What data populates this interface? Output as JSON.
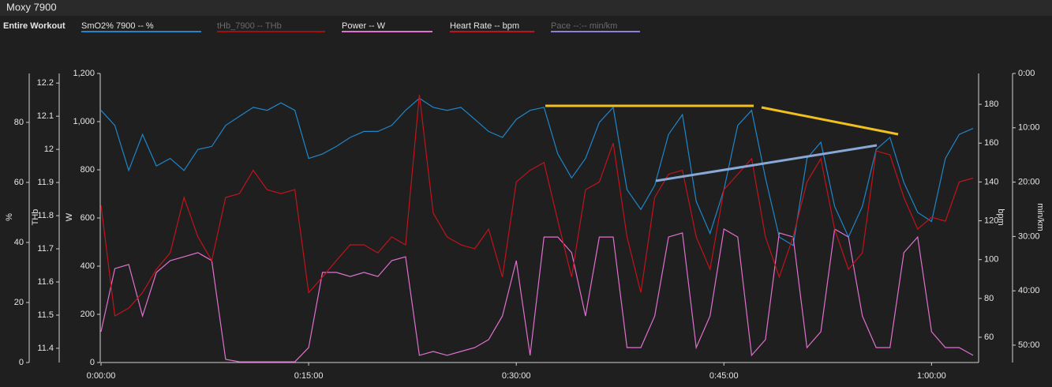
{
  "chart_data": {
    "type": "line",
    "title": "Moxy 7900",
    "subtitle": "Entire Workout",
    "x": [
      0,
      1,
      2,
      3,
      4,
      5,
      6,
      7,
      8,
      9,
      10,
      11,
      12,
      13,
      14,
      15,
      16,
      17,
      18,
      19,
      20,
      21,
      22,
      23,
      24,
      25,
      26,
      27,
      28,
      29,
      30,
      31,
      32,
      33,
      34,
      35,
      36,
      37,
      38,
      39,
      40,
      41,
      42,
      43,
      44,
      45,
      46,
      47,
      48,
      49,
      50,
      51,
      52,
      53,
      54,
      55,
      56,
      57,
      58,
      59,
      60,
      61,
      62,
      63
    ],
    "xlim": [
      0,
      63.4
    ],
    "xticks": [
      {
        "value": 0,
        "label": "0:00:00"
      },
      {
        "value": 15,
        "label": "0:15:00"
      },
      {
        "value": 30,
        "label": "0:30:00"
      },
      {
        "value": 45,
        "label": "0:45:00"
      },
      {
        "value": 60,
        "label": "1:00:00"
      }
    ],
    "axes": [
      {
        "title": "%",
        "lim": [
          0,
          96.3
        ],
        "ticks": [
          0,
          20,
          40,
          60,
          80
        ]
      },
      {
        "title": "THb",
        "lim": [
          11.357,
          12.229
        ],
        "ticks": [
          11.4,
          11.5,
          11.6,
          11.7,
          11.8,
          11.9,
          12,
          12.1,
          12.2
        ]
      },
      {
        "title": "W",
        "lim": [
          0,
          1200
        ],
        "ticks": [
          0,
          200,
          400,
          600,
          800,
          {
            "value": 1000,
            "label": "1,000"
          },
          {
            "value": 1200,
            "label": "1,200"
          }
        ]
      },
      {
        "title": "bpm",
        "lim": [
          46.98,
          195.9
        ],
        "ticks": [
          60,
          80,
          100,
          120,
          140,
          160,
          180
        ]
      },
      {
        "title": "min/km",
        "lim": [
          53.2,
          0
        ],
        "ticks": [
          {
            "value": 0,
            "label": "0:00"
          },
          {
            "value": 10,
            "label": "10:00"
          },
          {
            "value": 20,
            "label": "20:00"
          },
          {
            "value": 30,
            "label": "30:00"
          },
          {
            "value": 40,
            "label": "40:00"
          },
          {
            "value": 50,
            "label": "50:00"
          }
        ]
      }
    ],
    "series": [
      {
        "name": "SmO2% 7900  -- %",
        "color": "#1f86c8",
        "axis": 0,
        "values": [
          84,
          79,
          64,
          76,
          65.5,
          68,
          64,
          71,
          72,
          79,
          82,
          85,
          84,
          86.5,
          84,
          68,
          69.5,
          72,
          75,
          77,
          77,
          79,
          84,
          88,
          85,
          84,
          85,
          81,
          77,
          75,
          81,
          84,
          85,
          69.5,
          61.5,
          68,
          80,
          85,
          57.6,
          51,
          59,
          76,
          82.6,
          53.7,
          43,
          57.6,
          79,
          84,
          61.5,
          41.8,
          39,
          68,
          73.4,
          52,
          41.8,
          52,
          71,
          75,
          60,
          50,
          47,
          68,
          76,
          78
        ]
      },
      {
        "name": "tHb_7900  -- THb",
        "color": "#a01010",
        "axis": 1,
        "hidden": true
      },
      {
        "name": "Power  -- W",
        "color": "#e070d0",
        "axis": 2,
        "values": [
          128,
          390,
          407,
          193,
          374,
          423,
          439,
          456,
          423,
          13,
          3,
          3,
          3,
          3,
          3,
          62,
          374,
          374,
          357,
          374,
          357,
          423,
          439,
          30,
          46,
          30,
          46,
          62,
          95,
          193,
          423,
          30,
          521,
          521,
          456,
          193,
          521,
          521,
          62,
          62,
          193,
          521,
          538,
          62,
          193,
          554,
          521,
          30,
          95,
          538,
          521,
          62,
          128,
          554,
          521,
          193,
          62,
          62,
          456,
          521,
          128,
          62,
          62,
          30
        ]
      },
      {
        "name": "Heart Rate  -- bpm",
        "color": "#c0141c",
        "axis": 3,
        "values": [
          128,
          71,
          75,
          83,
          95,
          103.5,
          132,
          111.7,
          99.5,
          132,
          134,
          146,
          136,
          134,
          136,
          83,
          91,
          99.5,
          107.6,
          107.6,
          103.5,
          111.7,
          107.6,
          185,
          124,
          111.7,
          107.6,
          105.6,
          115.7,
          91,
          140,
          146,
          150,
          120,
          91,
          136,
          140,
          160,
          111.7,
          83,
          132,
          144,
          146,
          111.7,
          95,
          136,
          144,
          152,
          111.7,
          91,
          111.7,
          140,
          152,
          115.7,
          95,
          103.5,
          156,
          154,
          132,
          115.7,
          121.8,
          119.8,
          140,
          142
        ]
      },
      {
        "name": "Pace  --:-- min/km",
        "color": "#8a80d8",
        "axis": 4,
        "hidden": true
      }
    ]
  }
}
